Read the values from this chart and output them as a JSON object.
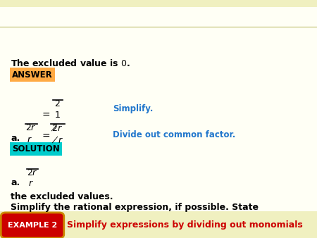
{
  "bg_color": "#fffff5",
  "header_bg": "#f0f0c0",
  "title_text": "Simplify expressions by dividing out monomials",
  "title_color": "#cc0000",
  "example_label": "EXAMPLE 2",
  "example_bg": "#cc0000",
  "example_border": "#cc8800",
  "example_text_color": "#ffffff",
  "body_text1": "Simplify the rational expression, if possible. State",
  "body_text2": "the excluded values.",
  "part_a_label": "a.",
  "solution_label": "SOLUTION",
  "solution_bg": "#00cccc",
  "solution_text_color": "#000000",
  "answer_label": "ANSWER",
  "answer_bg": "#ffaa44",
  "answer_text_color": "#000000",
  "excluded_value_text": "The excluded value is",
  "excluded_value": "0",
  "divide_comment": "Divide out common factor.",
  "simplify_comment": "Simplify.",
  "comment_color": "#2277cc",
  "body_color": "#000000",
  "math_color": "#000000",
  "header_line_color": "#d0d090",
  "figsize": [
    4.5,
    3.38
  ],
  "dpi": 100
}
